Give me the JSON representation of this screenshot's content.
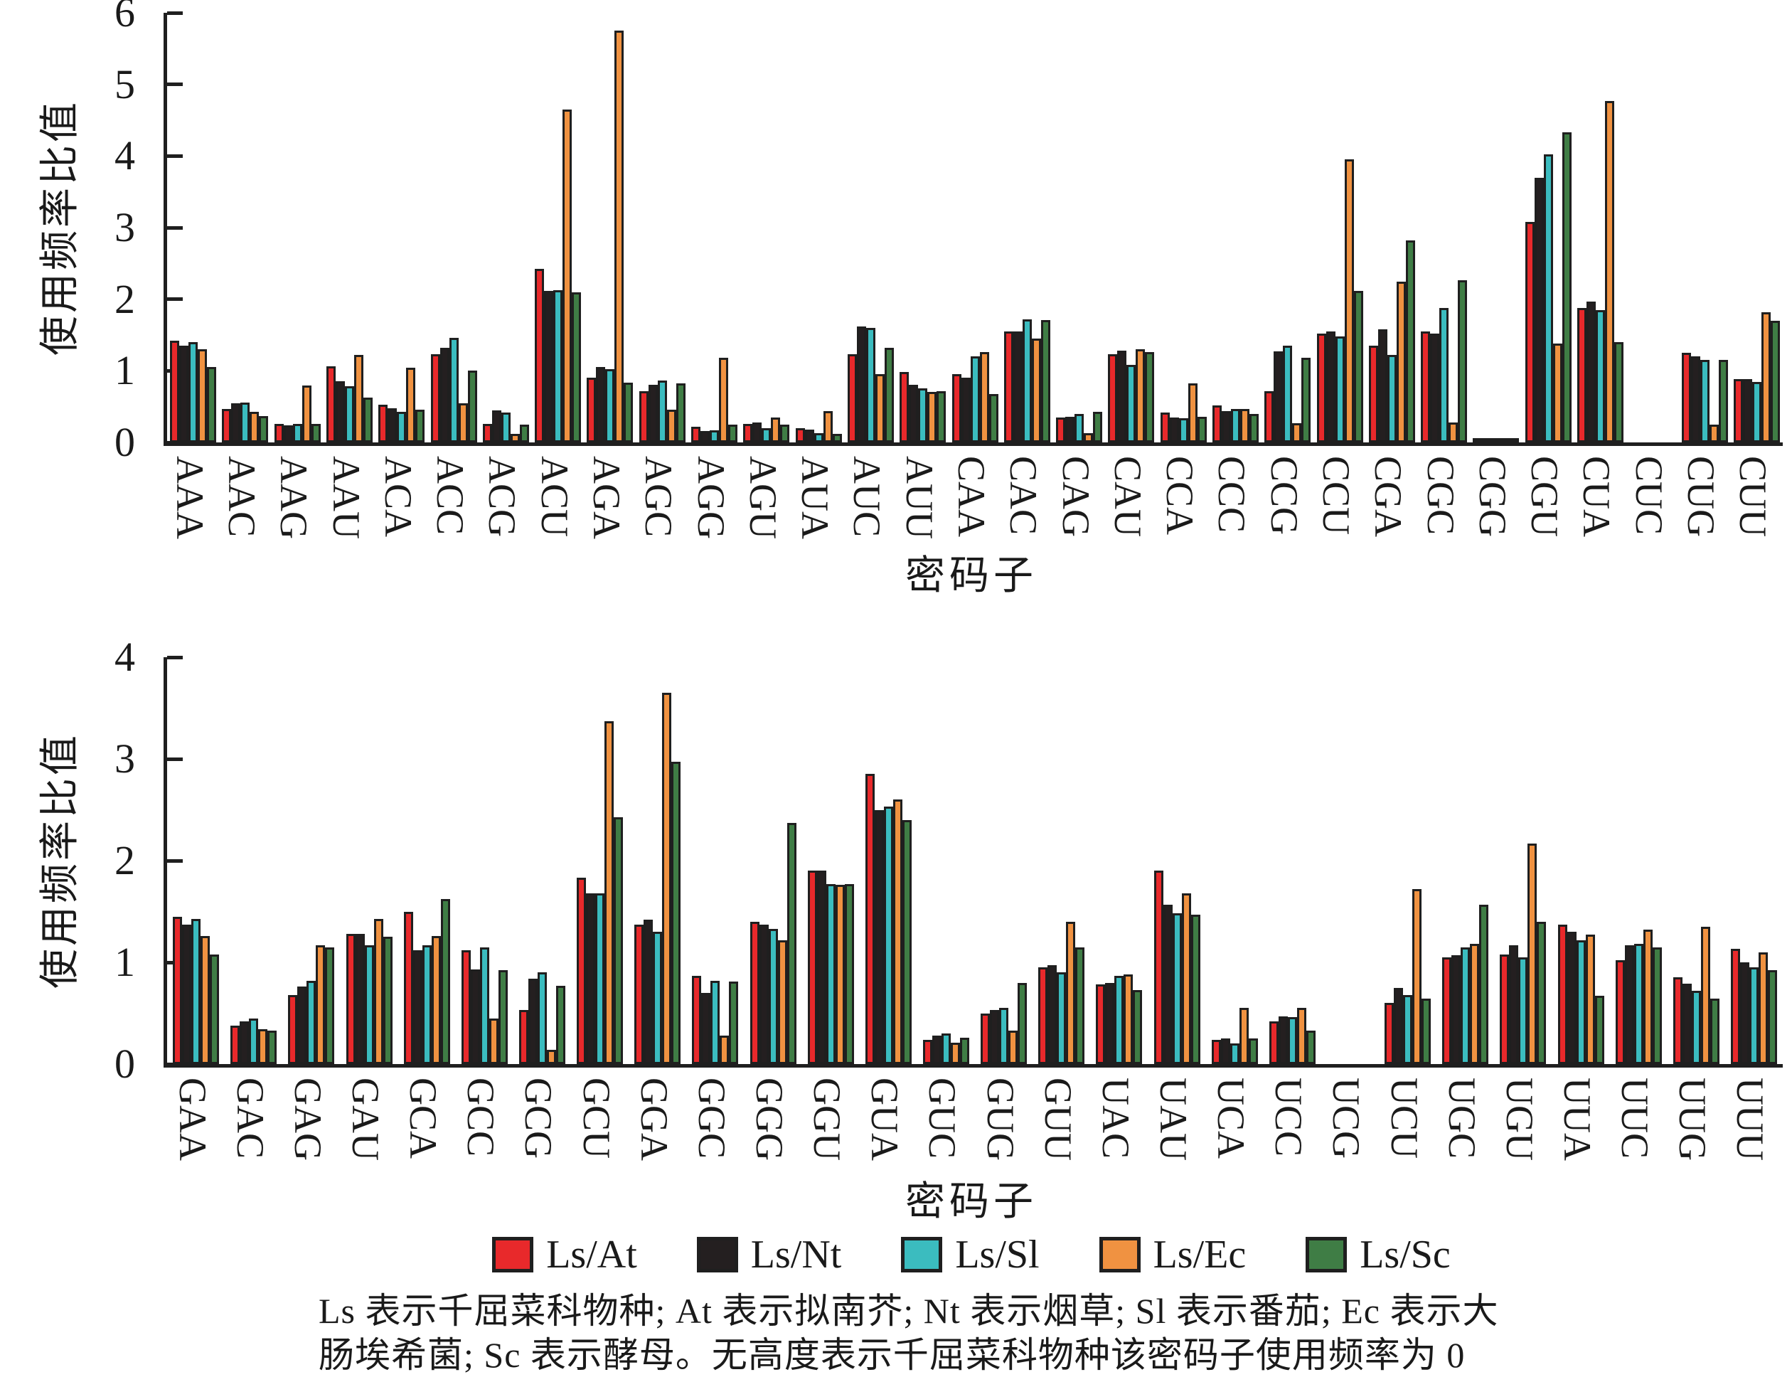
{
  "figure": {
    "background": "#ffffff",
    "axis_color": "#1f1f1f"
  },
  "legend": {
    "items": [
      {
        "label": "Ls/At",
        "color": "#e8292b"
      },
      {
        "label": "Ls/Nt",
        "color": "#241f20"
      },
      {
        "label": "Ls/Sl",
        "color": "#3bbcbf"
      },
      {
        "label": "Ls/Ec",
        "color": "#f09241"
      },
      {
        "label": "Ls/Sc",
        "color": "#3f7d45"
      }
    ]
  },
  "caption": {
    "lines": [
      "Ls 表示千屈菜科物种; At 表示拟南芥; Nt 表示烟草; Sl 表示番茄; Ec 表示大",
      "肠埃希菌; Sc 表示酵母。无高度表示千屈菜科物种该密码子使用频率为 0"
    ]
  },
  "chart_data": [
    {
      "type": "bar",
      "title": "",
      "xlabel": "密码子",
      "ylabel": "使用频率比值",
      "ylim": [
        0,
        6
      ],
      "yticks": [
        0,
        1,
        2,
        3,
        4,
        5,
        6
      ],
      "grid": false,
      "legend_position": "below-second-panel",
      "categories": [
        "AAA",
        "AAC",
        "AAG",
        "AAU",
        "ACA",
        "ACC",
        "ACG",
        "ACU",
        "AGA",
        "AGC",
        "AGG",
        "AGU",
        "AUA",
        "AUC",
        "AUU",
        "CAA",
        "CAC",
        "CAG",
        "CAU",
        "CCA",
        "CCC",
        "CCG",
        "CCU",
        "CGA",
        "CGC",
        "CGG",
        "CGU",
        "CUA",
        "CUC",
        "CUG",
        "CUU"
      ],
      "series": [
        {
          "name": "Ls/At",
          "color": "#e8292b",
          "values": [
            1.42,
            0.47,
            0.26,
            1.06,
            0.53,
            1.23,
            0.26,
            2.42,
            0.9,
            0.72,
            0.22,
            0.26,
            0.2,
            1.23,
            0.98,
            0.95,
            1.55,
            0.35,
            1.23,
            0.42,
            0.52,
            0.72,
            1.52,
            1.35,
            1.55,
            0.02,
            3.08,
            1.88,
            0,
            1.25,
            0.88
          ]
        },
        {
          "name": "Ls/Nt",
          "color": "#241f20",
          "values": [
            1.35,
            0.55,
            0.24,
            0.85,
            0.48,
            1.32,
            0.45,
            2.12,
            1.05,
            0.8,
            0.16,
            0.28,
            0.18,
            1.62,
            0.8,
            0.9,
            1.55,
            0.36,
            1.28,
            0.35,
            0.44,
            1.27,
            1.55,
            1.58,
            1.52,
            0.02,
            3.7,
            1.97,
            0,
            1.2,
            0.88
          ]
        },
        {
          "name": "Ls/Sl",
          "color": "#3bbcbf",
          "values": [
            1.4,
            0.56,
            0.26,
            0.78,
            0.43,
            1.46,
            0.42,
            2.13,
            1.02,
            0.86,
            0.17,
            0.2,
            0.13,
            1.6,
            0.76,
            1.2,
            1.72,
            0.4,
            1.08,
            0.34,
            0.47,
            1.35,
            1.48,
            1.22,
            1.88,
            0.02,
            4.02,
            1.85,
            0,
            1.15,
            0.84
          ]
        },
        {
          "name": "Ls/Ec",
          "color": "#f09241",
          "values": [
            1.3,
            0.43,
            0.79,
            1.22,
            1.04,
            0.55,
            0.12,
            4.65,
            5.75,
            0.46,
            1.18,
            0.35,
            0.44,
            0.95,
            0.71,
            1.26,
            1.45,
            0.13,
            1.3,
            0.82,
            0.47,
            0.27,
            3.95,
            2.25,
            0.28,
            0.02,
            1.38,
            4.77,
            0,
            0.25,
            1.82
          ]
        },
        {
          "name": "Ls/Sc",
          "color": "#3f7d45",
          "values": [
            1.05,
            0.37,
            0.26,
            0.63,
            0.46,
            1.0,
            0.25,
            2.1,
            0.83,
            0.82,
            0.25,
            0.25,
            0.12,
            1.32,
            0.72,
            0.68,
            1.71,
            0.43,
            1.26,
            0.36,
            0.4,
            1.18,
            2.12,
            2.82,
            2.27,
            0.05,
            4.33,
            1.4,
            0,
            1.15,
            1.7
          ]
        }
      ]
    },
    {
      "type": "bar",
      "title": "",
      "xlabel": "密码子",
      "ylabel": "使用频率比值",
      "ylim": [
        0,
        4
      ],
      "yticks": [
        0,
        1,
        2,
        3,
        4
      ],
      "grid": false,
      "categories": [
        "GAA",
        "GAC",
        "GAG",
        "GAU",
        "GCA",
        "GCC",
        "GCG",
        "GCU",
        "GGA",
        "GGC",
        "GGG",
        "GGU",
        "GUA",
        "GUC",
        "GUG",
        "GUU",
        "UAC",
        "UAU",
        "UCA",
        "UCC",
        "UCG",
        "UCU",
        "UGC",
        "UGU",
        "UUA",
        "UUC",
        "UUG",
        "UUU"
      ],
      "series": [
        {
          "name": "Ls/At",
          "color": "#e8292b",
          "values": [
            1.45,
            0.38,
            0.68,
            1.28,
            1.5,
            1.12,
            0.53,
            1.83,
            1.37,
            0.87,
            1.4,
            1.9,
            2.85,
            0.24,
            0.5,
            0.95,
            0.78,
            1.9,
            0.24,
            0.42,
            0,
            0.6,
            1.05,
            1.08,
            1.37,
            1.02,
            0.85,
            1.13
          ]
        },
        {
          "name": "Ls/Nt",
          "color": "#241f20",
          "values": [
            1.37,
            0.42,
            0.76,
            1.28,
            1.12,
            0.93,
            0.84,
            1.68,
            1.42,
            0.7,
            1.37,
            1.9,
            2.5,
            0.28,
            0.53,
            0.97,
            0.8,
            1.57,
            0.25,
            0.47,
            0,
            0.75,
            1.07,
            1.17,
            1.3,
            1.17,
            0.79,
            1.0
          ]
        },
        {
          "name": "Ls/Sl",
          "color": "#3bbcbf",
          "values": [
            1.43,
            0.45,
            0.82,
            1.17,
            1.17,
            1.15,
            0.9,
            1.68,
            1.3,
            0.82,
            1.33,
            1.77,
            2.53,
            0.3,
            0.55,
            0.9,
            0.87,
            1.48,
            0.2,
            0.46,
            0,
            0.68,
            1.15,
            1.05,
            1.22,
            1.18,
            0.72,
            0.95
          ]
        },
        {
          "name": "Ls/Ec",
          "color": "#f09241",
          "values": [
            1.26,
            0.34,
            1.17,
            1.43,
            1.26,
            0.45,
            0.14,
            3.37,
            3.65,
            0.28,
            1.22,
            1.76,
            2.6,
            0.21,
            0.33,
            1.4,
            0.88,
            1.68,
            0.55,
            0.55,
            0,
            1.72,
            1.18,
            2.17,
            1.27,
            1.32,
            1.35,
            1.1
          ]
        },
        {
          "name": "Ls/Sc",
          "color": "#3f7d45",
          "values": [
            1.08,
            0.33,
            1.15,
            1.25,
            1.62,
            0.92,
            0.77,
            2.43,
            2.97,
            0.81,
            2.37,
            1.77,
            2.4,
            0.26,
            0.8,
            1.15,
            0.73,
            1.47,
            0.25,
            0.33,
            0,
            0.64,
            1.57,
            1.4,
            0.67,
            1.15,
            0.64,
            0.92
          ]
        }
      ]
    }
  ]
}
